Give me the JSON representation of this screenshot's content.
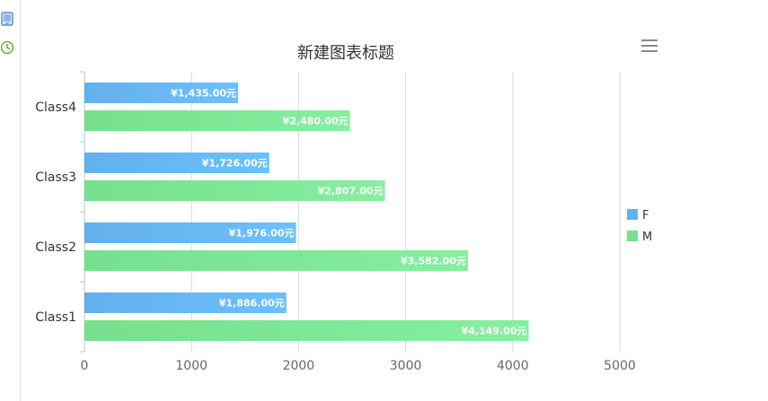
{
  "sidebar": {
    "icons": [
      "tablet-icon",
      "clock-icon"
    ]
  },
  "toolbar": {
    "menu_icon": "hamburger-menu-icon"
  },
  "chart_data": {
    "type": "bar",
    "orientation": "horizontal",
    "title": "新建图表标题",
    "categories": [
      "Class4",
      "Class3",
      "Class2",
      "Class1"
    ],
    "series": [
      {
        "name": "F",
        "color": "#63b0ee",
        "values": [
          1435,
          1726,
          1976,
          1886
        ],
        "labels": [
          "¥1,435.00元",
          "¥1,726.00元",
          "¥1,976.00元",
          "¥1,886.00元"
        ]
      },
      {
        "name": "M",
        "color": "#76e08e",
        "values": [
          2480,
          2807,
          3582,
          4149
        ],
        "labels": [
          "¥2,480.00元",
          "¥2,807.00元",
          "¥3,582.00元",
          "¥4,149.00元"
        ]
      }
    ],
    "xlim": [
      0,
      5000
    ],
    "ticks": [
      0,
      1000,
      2000,
      3000,
      4000,
      5000
    ],
    "tick_labels": [
      "0",
      "1000",
      "2000",
      "3000",
      "4000",
      "5000"
    ],
    "grid": true,
    "legend_position": "right"
  }
}
